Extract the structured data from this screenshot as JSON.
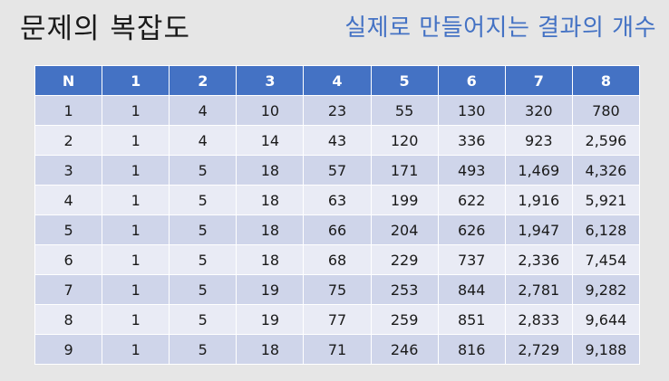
{
  "title": "문제의 복잡도",
  "subtitle": "실제로 만들어지는 결과의 개수",
  "table": {
    "headers": [
      "N",
      "1",
      "2",
      "3",
      "4",
      "5",
      "6",
      "7",
      "8"
    ],
    "rows": [
      [
        "1",
        "1",
        "4",
        "10",
        "23",
        "55",
        "130",
        "320",
        "780"
      ],
      [
        "2",
        "1",
        "4",
        "14",
        "43",
        "120",
        "336",
        "923",
        "2,596"
      ],
      [
        "3",
        "1",
        "5",
        "18",
        "57",
        "171",
        "493",
        "1,469",
        "4,326"
      ],
      [
        "4",
        "1",
        "5",
        "18",
        "63",
        "199",
        "622",
        "1,916",
        "5,921"
      ],
      [
        "5",
        "1",
        "5",
        "18",
        "66",
        "204",
        "626",
        "1,947",
        "6,128"
      ],
      [
        "6",
        "1",
        "5",
        "18",
        "68",
        "229",
        "737",
        "2,336",
        "7,454"
      ],
      [
        "7",
        "1",
        "5",
        "19",
        "75",
        "253",
        "844",
        "2,781",
        "9,282"
      ],
      [
        "8",
        "1",
        "5",
        "19",
        "77",
        "259",
        "851",
        "2,833",
        "9,644"
      ],
      [
        "9",
        "1",
        "5",
        "18",
        "71",
        "246",
        "816",
        "2,729",
        "9,188"
      ]
    ]
  },
  "colors": {
    "header_bg": "#4472c4",
    "row_odd": "#cfd5ea",
    "row_even": "#e9ebf5",
    "subtitle": "#4472c4"
  }
}
